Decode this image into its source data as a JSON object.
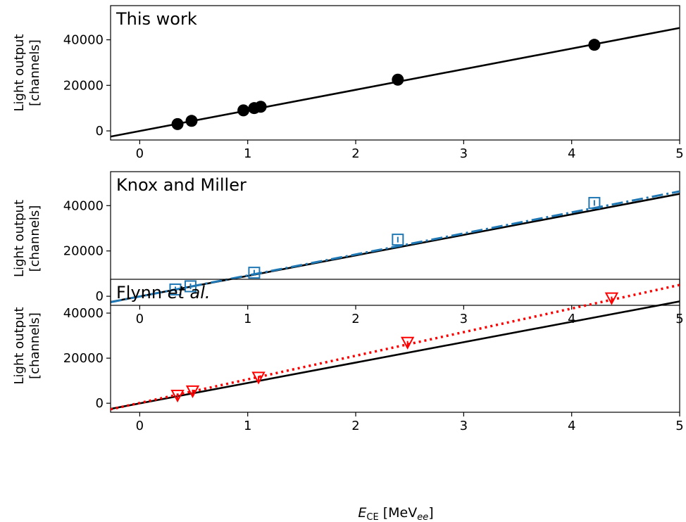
{
  "figure": {
    "xlabel_var": "E",
    "xlabel_sub": "CE",
    "xlabel_unit_pre": " [MeV",
    "xlabel_unit_sub": "ee",
    "xlabel_unit_post": "]"
  },
  "chart_data": [
    {
      "type": "scatter",
      "title": "This work",
      "ylabel_line1": "Light output",
      "ylabel_line2": "[channels]",
      "xlim": [
        -0.27,
        5.0
      ],
      "ylim": [
        -4000,
        55000
      ],
      "xticks": [
        0,
        1,
        2,
        3,
        4,
        5
      ],
      "yticks": [
        0,
        20000,
        40000
      ],
      "grid": false,
      "series": [
        {
          "kind": "points",
          "marker": "filled-circle",
          "color": "#000000",
          "x": [
            0.35,
            0.48,
            0.96,
            1.06,
            1.12,
            2.39,
            4.21
          ],
          "y": [
            3000,
            4400,
            9000,
            10000,
            10600,
            22500,
            37800
          ]
        },
        {
          "kind": "line",
          "style": "solid",
          "color": "#000000",
          "x": [
            -0.27,
            5.0
          ],
          "y": [
            -2500,
            45200
          ]
        }
      ]
    },
    {
      "type": "scatter",
      "title": "Knox and Miller",
      "ylabel_line1": "Light output",
      "ylabel_line2": "[channels]",
      "xlim": [
        -0.27,
        5.0
      ],
      "ylim": [
        -4000,
        55000
      ],
      "xticks": [
        0,
        1,
        2,
        3,
        4,
        5
      ],
      "yticks": [
        0,
        20000,
        40000
      ],
      "grid": false,
      "series": [
        {
          "kind": "points",
          "marker": "open-square",
          "color": "#1f77b4",
          "x": [
            0.33,
            0.47,
            1.06,
            2.39,
            4.21
          ],
          "y": [
            3000,
            4400,
            10400,
            25000,
            41200
          ]
        },
        {
          "kind": "line",
          "style": "solid",
          "color": "#000000",
          "x": [
            -0.27,
            5.0
          ],
          "y": [
            -2500,
            45200
          ]
        },
        {
          "kind": "line",
          "style": "dashdot",
          "color": "#1f77b4",
          "x": [
            -0.27,
            5.0
          ],
          "y": [
            -2600,
            46300
          ]
        }
      ]
    },
    {
      "type": "scatter",
      "title": "Flynn ",
      "title_italic": "et al.",
      "ylabel_line1": "Light output",
      "ylabel_line2": "[channels]",
      "xlim": [
        -0.27,
        5.0
      ],
      "ylim": [
        -4000,
        55000
      ],
      "xticks": [
        0,
        1,
        2,
        3,
        4,
        5
      ],
      "yticks": [
        0,
        20000,
        40000
      ],
      "grid": false,
      "series": [
        {
          "kind": "points",
          "marker": "open-triangle-down",
          "color": "#ff0000",
          "x": [
            0.35,
            0.49,
            1.1,
            2.48,
            4.37
          ],
          "y": [
            3500,
            5400,
            11500,
            27000,
            46700
          ]
        },
        {
          "kind": "line",
          "style": "solid",
          "color": "#000000",
          "x": [
            -0.27,
            5.0
          ],
          "y": [
            -2500,
            45200
          ]
        },
        {
          "kind": "line",
          "style": "dotted",
          "color": "#ff0000",
          "x": [
            -0.27,
            5.0
          ],
          "y": [
            -2700,
            52500
          ]
        }
      ]
    }
  ]
}
